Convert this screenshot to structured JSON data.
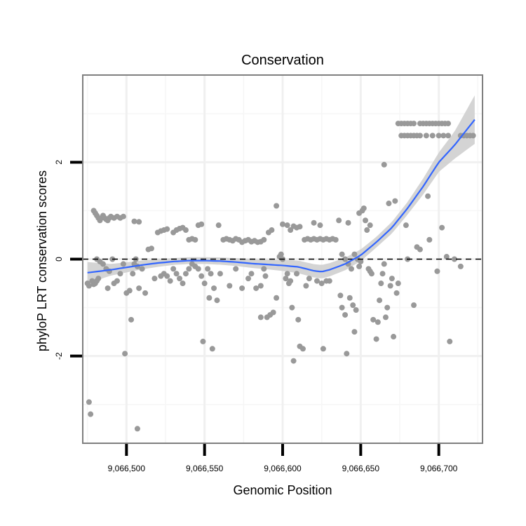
{
  "chart_data": {
    "type": "scatter",
    "title": "Conservation",
    "xlabel": "Genomic Position",
    "ylabel": "phyloP LRT conservation scores",
    "xlim": [
      9066472,
      9066728
    ],
    "ylim": [
      -3.8,
      3.8
    ],
    "x_ticks": [
      9066500,
      9066550,
      9066600,
      9066650,
      9066700
    ],
    "x_tick_labels": [
      "9,066,500",
      "9,066,550",
      "9,066,600",
      "9,066,650",
      "9,066,700"
    ],
    "y_ticks": [
      2,
      0,
      -2
    ],
    "y_tick_labels": [
      "2",
      "0",
      "-2"
    ],
    "reference_line": {
      "y": 0,
      "style": "dashed"
    },
    "colors": {
      "points": "#999999",
      "smooth": "#3366ff",
      "ribbon": "#cccccc",
      "grid": "#f0f0f0",
      "frame": "#7f7f7f"
    },
    "points": [
      [
        9066475,
        -0.5
      ],
      [
        9066476,
        -0.55
      ],
      [
        9066478,
        -0.45
      ],
      [
        9066479,
        -0.52
      ],
      [
        9066480,
        -0.5
      ],
      [
        9066481,
        -0.45
      ],
      [
        9066482,
        -0.4
      ],
      [
        9066476,
        -2.95
      ],
      [
        9066477,
        -3.2
      ],
      [
        9066479,
        1.0
      ],
      [
        9066480,
        0.95
      ],
      [
        9066481,
        0.9
      ],
      [
        9066482,
        0.85
      ],
      [
        9066483,
        0.8
      ],
      [
        9066484,
        0.85
      ],
      [
        9066485,
        0.9
      ],
      [
        9066486,
        0.85
      ],
      [
        9066487,
        0.82
      ],
      [
        9066488,
        0.8
      ],
      [
        9066489,
        0.85
      ],
      [
        9066490,
        0.88
      ],
      [
        9066492,
        0.85
      ],
      [
        9066494,
        0.88
      ],
      [
        9066496,
        0.85
      ],
      [
        9066498,
        0.88
      ],
      [
        9066481,
        0.0
      ],
      [
        9066483,
        -0.05
      ],
      [
        9066485,
        -0.1
      ],
      [
        9066487,
        -0.2
      ],
      [
        9066489,
        -0.25
      ],
      [
        9066491,
        0.0
      ],
      [
        9066488,
        -0.6
      ],
      [
        9066492,
        -0.5
      ],
      [
        9066494,
        -0.45
      ],
      [
        9066496,
        -0.3
      ],
      [
        9066498,
        -0.1
      ],
      [
        9066500,
        -0.7
      ],
      [
        9066502,
        -0.65
      ],
      [
        9066504,
        -0.3
      ],
      [
        9066505,
        -0.1
      ],
      [
        9066506,
        0.0
      ],
      [
        9066507,
        -0.15
      ],
      [
        9066499,
        -1.95
      ],
      [
        9066503,
        -1.25
      ],
      [
        9066507,
        -3.5
      ],
      [
        9066505,
        0.78
      ],
      [
        9066508,
        0.77
      ],
      [
        9066508,
        -0.6
      ],
      [
        9066510,
        -0.2
      ],
      [
        9066512,
        -0.7
      ],
      [
        9066514,
        0.2
      ],
      [
        9066516,
        0.22
      ],
      [
        9066518,
        -0.4
      ],
      [
        9066520,
        0.55
      ],
      [
        9066522,
        0.58
      ],
      [
        9066524,
        0.6
      ],
      [
        9066526,
        0.62
      ],
      [
        9066522,
        -0.35
      ],
      [
        9066524,
        -0.3
      ],
      [
        9066526,
        -0.35
      ],
      [
        9066528,
        -0.45
      ],
      [
        9066530,
        -0.2
      ],
      [
        9066532,
        -0.3
      ],
      [
        9066530,
        0.55
      ],
      [
        9066532,
        0.6
      ],
      [
        9066534,
        0.63
      ],
      [
        9066536,
        0.65
      ],
      [
        9066538,
        0.6
      ],
      [
        9066534,
        -0.4
      ],
      [
        9066536,
        -0.5
      ],
      [
        9066538,
        -0.3
      ],
      [
        9066540,
        -0.2
      ],
      [
        9066542,
        -0.1
      ],
      [
        9066544,
        -0.15
      ],
      [
        9066540,
        0.4
      ],
      [
        9066542,
        0.42
      ],
      [
        9066544,
        0.4
      ],
      [
        9066546,
        0.7
      ],
      [
        9066548,
        0.72
      ],
      [
        9066546,
        -0.2
      ],
      [
        9066548,
        -0.35
      ],
      [
        9066550,
        -0.5
      ],
      [
        9066549,
        -1.7
      ],
      [
        9066552,
        -0.2
      ],
      [
        9066554,
        -0.3
      ],
      [
        9066553,
        -0.8
      ],
      [
        9066555,
        -1.85
      ],
      [
        9066556,
        -0.6
      ],
      [
        9066558,
        -0.85
      ],
      [
        9066559,
        0.7
      ],
      [
        9066560,
        -0.3
      ],
      [
        9066562,
        0.4
      ],
      [
        9066564,
        0.42
      ],
      [
        9066566,
        0.4
      ],
      [
        9066568,
        0.38
      ],
      [
        9066570,
        0.42
      ],
      [
        9066572,
        0.4
      ],
      [
        9066574,
        0.35
      ],
      [
        9066576,
        0.38
      ],
      [
        9066578,
        0.4
      ],
      [
        9066580,
        0.36
      ],
      [
        9066582,
        0.38
      ],
      [
        9066584,
        0.35
      ],
      [
        9066586,
        0.36
      ],
      [
        9066588,
        0.4
      ],
      [
        9066566,
        -0.55
      ],
      [
        9066570,
        -0.2
      ],
      [
        9066574,
        -0.6
      ],
      [
        9066578,
        -0.4
      ],
      [
        9066580,
        -0.3
      ],
      [
        9066583,
        -0.6
      ],
      [
        9066586,
        -0.55
      ],
      [
        9066588,
        -0.2
      ],
      [
        9066589,
        -0.35
      ],
      [
        9066586,
        -1.2
      ],
      [
        9066590,
        -1.2
      ],
      [
        9066592,
        -1.15
      ],
      [
        9066594,
        -1.1
      ],
      [
        9066596,
        -0.8
      ],
      [
        9066591,
        0.55
      ],
      [
        9066593,
        0.6
      ],
      [
        9066596,
        1.1
      ],
      [
        9066598,
        0.05
      ],
      [
        9066599,
        0.1
      ],
      [
        9066600,
        0.0
      ],
      [
        9066602,
        -0.4
      ],
      [
        9066603,
        -0.3
      ],
      [
        9066600,
        0.72
      ],
      [
        9066603,
        0.7
      ],
      [
        9066605,
        0.6
      ],
      [
        9066607,
        0.68
      ],
      [
        9066609,
        0.65
      ],
      [
        9066611,
        0.67
      ],
      [
        9066604,
        -0.5
      ],
      [
        9066605,
        -0.45
      ],
      [
        9066606,
        -1.0
      ],
      [
        9066607,
        -2.1
      ],
      [
        9066609,
        -0.3
      ],
      [
        9066610,
        -1.25
      ],
      [
        9066611,
        -1.8
      ],
      [
        9066613,
        -1.85
      ],
      [
        9066615,
        -0.55
      ],
      [
        9066617,
        -0.4
      ],
      [
        9066614,
        0.4
      ],
      [
        9066616,
        0.42
      ],
      [
        9066618,
        0.4
      ],
      [
        9066620,
        0.42
      ],
      [
        9066622,
        0.4
      ],
      [
        9066624,
        0.42
      ],
      [
        9066626,
        0.4
      ],
      [
        9066628,
        0.42
      ],
      [
        9066630,
        0.4
      ],
      [
        9066632,
        0.42
      ],
      [
        9066634,
        0.4
      ],
      [
        9066620,
        0.75
      ],
      [
        9066624,
        0.7
      ],
      [
        9066622,
        -0.45
      ],
      [
        9066625,
        -0.5
      ],
      [
        9066628,
        -0.45
      ],
      [
        9066630,
        -0.45
      ],
      [
        9066626,
        -1.85
      ],
      [
        9066636,
        0.8
      ],
      [
        9066638,
        0.1
      ],
      [
        9066640,
        0.0
      ],
      [
        9066642,
        -0.1
      ],
      [
        9066644,
        -0.2
      ],
      [
        9066642,
        0.75
      ],
      [
        9066637,
        -0.75
      ],
      [
        9066638,
        -1.0
      ],
      [
        9066640,
        -1.15
      ],
      [
        9066641,
        -1.95
      ],
      [
        9066643,
        -0.8
      ],
      [
        9066645,
        -0.95
      ],
      [
        9066646,
        -1.5
      ],
      [
        9066647,
        -1.05
      ],
      [
        9066649,
        -0.15
      ],
      [
        9066650,
        -0.05
      ],
      [
        9066646,
        0.1
      ],
      [
        9066648,
        0.0
      ],
      [
        9066649,
        0.95
      ],
      [
        9066651,
        1.0
      ],
      [
        9066652,
        1.05
      ],
      [
        9066653,
        0.8
      ],
      [
        9066654,
        0.6
      ],
      [
        9066655,
        -0.2
      ],
      [
        9066656,
        -0.25
      ],
      [
        9066657,
        -0.3
      ],
      [
        9066656,
        0.7
      ],
      [
        9066658,
        -1.25
      ],
      [
        9066660,
        -1.65
      ],
      [
        9066661,
        -1.3
      ],
      [
        9066662,
        -0.85
      ],
      [
        9066663,
        -0.5
      ],
      [
        9066664,
        -0.3
      ],
      [
        9066665,
        -0.1
      ],
      [
        9066665,
        1.95
      ],
      [
        9066666,
        -1.2
      ],
      [
        9066667,
        -1.0
      ],
      [
        9066668,
        1.15
      ],
      [
        9066669,
        -0.55
      ],
      [
        9066670,
        -0.4
      ],
      [
        9066671,
        -1.6
      ],
      [
        9066672,
        1.2
      ],
      [
        9066673,
        -0.7
      ],
      [
        9066674,
        -0.5
      ],
      [
        9066679,
        0.7
      ],
      [
        9066680,
        0.0
      ],
      [
        9066684,
        -0.95
      ],
      [
        9066686,
        0.25
      ],
      [
        9066688,
        0.2
      ],
      [
        9066693,
        1.3
      ],
      [
        9066694,
        0.4
      ],
      [
        9066699,
        -0.25
      ],
      [
        9066702,
        0.65
      ],
      [
        9066705,
        0.05
      ],
      [
        9066707,
        -1.7
      ],
      [
        9066710,
        0.0
      ],
      [
        9066714,
        -0.15
      ],
      [
        9066674,
        2.8
      ],
      [
        9066676,
        2.8
      ],
      [
        9066678,
        2.8
      ],
      [
        9066680,
        2.8
      ],
      [
        9066682,
        2.8
      ],
      [
        9066684,
        2.8
      ],
      [
        9066688,
        2.8
      ],
      [
        9066690,
        2.8
      ],
      [
        9066692,
        2.8
      ],
      [
        9066694,
        2.8
      ],
      [
        9066696,
        2.8
      ],
      [
        9066698,
        2.8
      ],
      [
        9066700,
        2.8
      ],
      [
        9066702,
        2.8
      ],
      [
        9066704,
        2.8
      ],
      [
        9066706,
        2.8
      ],
      [
        9066676,
        2.55
      ],
      [
        9066678,
        2.55
      ],
      [
        9066680,
        2.55
      ],
      [
        9066682,
        2.55
      ],
      [
        9066684,
        2.55
      ],
      [
        9066686,
        2.55
      ],
      [
        9066688,
        2.55
      ],
      [
        9066692,
        2.55
      ],
      [
        9066696,
        2.55
      ],
      [
        9066700,
        2.55
      ],
      [
        9066703,
        2.55
      ],
      [
        9066706,
        2.55
      ],
      [
        9066714,
        2.55
      ],
      [
        9066716,
        2.55
      ],
      [
        9066718,
        2.55
      ],
      [
        9066720,
        2.55
      ],
      [
        9066722,
        2.55
      ]
    ],
    "smooth_line": [
      [
        9066475,
        -0.28
      ],
      [
        9066490,
        -0.22
      ],
      [
        9066500,
        -0.17
      ],
      [
        9066510,
        -0.12
      ],
      [
        9066520,
        -0.08
      ],
      [
        9066530,
        -0.05
      ],
      [
        9066540,
        -0.03
      ],
      [
        9066550,
        -0.03
      ],
      [
        9066560,
        -0.04
      ],
      [
        9066570,
        -0.06
      ],
      [
        9066580,
        -0.09
      ],
      [
        9066590,
        -0.11
      ],
      [
        9066600,
        -0.13
      ],
      [
        9066610,
        -0.16
      ],
      [
        9066620,
        -0.24
      ],
      [
        9066625,
        -0.26
      ],
      [
        9066630,
        -0.22
      ],
      [
        9066640,
        -0.1
      ],
      [
        9066650,
        0.08
      ],
      [
        9066660,
        0.35
      ],
      [
        9066670,
        0.65
      ],
      [
        9066680,
        1.05
      ],
      [
        9066690,
        1.5
      ],
      [
        9066700,
        2.0
      ],
      [
        9066710,
        2.35
      ],
      [
        9066723,
        2.88
      ]
    ],
    "smooth_ribbon_halfwidth": [
      [
        9066475,
        0.22
      ],
      [
        9066490,
        0.12
      ],
      [
        9066510,
        0.09
      ],
      [
        9066530,
        0.07
      ],
      [
        9066550,
        0.07
      ],
      [
        9066570,
        0.08
      ],
      [
        9066590,
        0.1
      ],
      [
        9066610,
        0.13
      ],
      [
        9066625,
        0.14
      ],
      [
        9066640,
        0.13
      ],
      [
        9066660,
        0.11
      ],
      [
        9066680,
        0.13
      ],
      [
        9066700,
        0.2
      ],
      [
        9066710,
        0.28
      ],
      [
        9066723,
        0.5
      ]
    ]
  }
}
